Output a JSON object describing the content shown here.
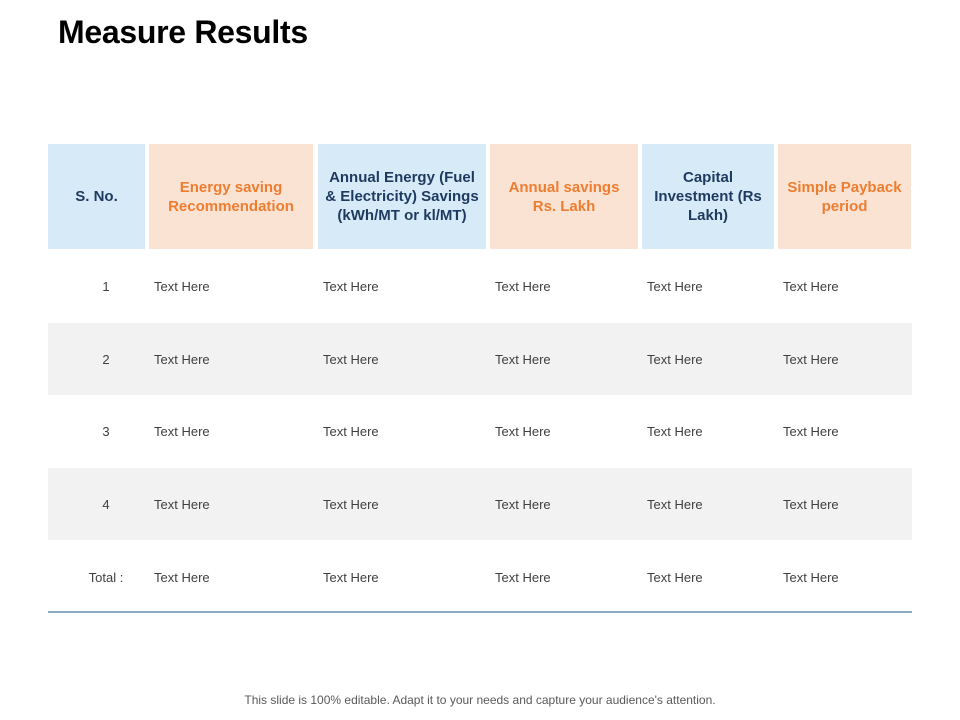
{
  "title": "Measure Results",
  "table": {
    "headers": [
      "S. No.",
      "Energy saving Recommendation",
      "Annual Energy (Fuel & Electricity) Savings (kWh/MT or kl/MT)",
      "Annual savings Rs. Lakh",
      "Capital Investment (Rs Lakh)",
      "Simple Payback period"
    ],
    "rows": [
      [
        "1",
        "Text Here",
        "Text Here",
        "Text Here",
        "Text Here",
        "Text Here"
      ],
      [
        "2",
        "Text Here",
        "Text Here",
        "Text Here",
        "Text Here",
        "Text Here"
      ],
      [
        "3",
        "Text Here",
        "Text Here",
        "Text Here",
        "Text Here",
        "Text Here"
      ],
      [
        "4",
        "Text Here",
        "Text Here",
        "Text Here",
        "Text Here",
        "Text Here"
      ],
      [
        "Total :",
        "Text Here",
        "Text Here",
        "Text Here",
        "Text Here",
        "Text Here"
      ]
    ]
  },
  "colors": {
    "header_blue": "#d6eaf8",
    "header_peach": "#fbe3d3",
    "accent_orange": "#ed7d31",
    "header_navy": "#1f3a5f"
  },
  "footer": "This slide is 100% editable. Adapt it to your needs and capture your audience's attention."
}
